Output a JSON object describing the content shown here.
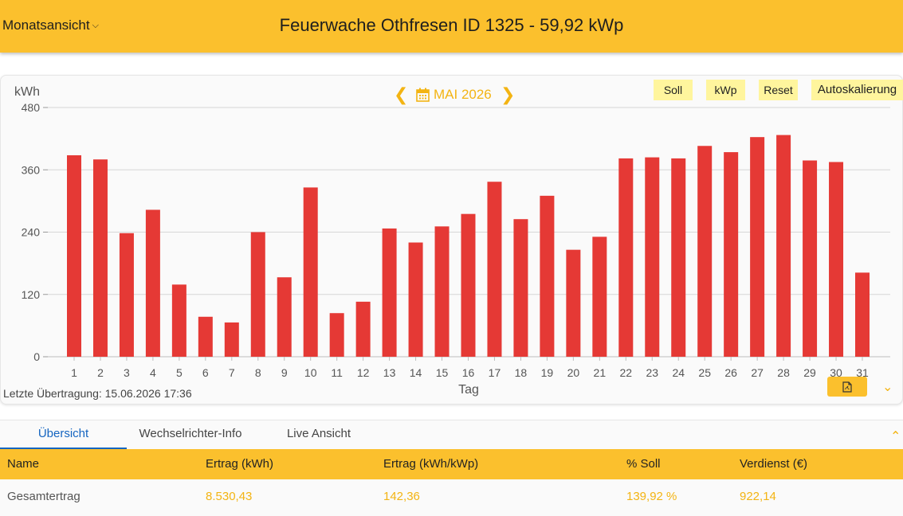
{
  "header": {
    "view_selector": "Monatsansicht",
    "title": "Feuerwache Othfresen ID 1325 - 59,92 kWp"
  },
  "toolbar": {
    "unit": "kWh",
    "month": "MAI 2026",
    "buttons": [
      "Soll",
      "kWp",
      "Reset",
      "Autoskalierung"
    ]
  },
  "colors": {
    "accent": "#fbc02d",
    "bar": "#e53935",
    "nav": "#f3b413",
    "tab_active": "#1565c0",
    "button_bg": "#fff59d"
  },
  "chart_data": {
    "type": "bar",
    "ylabel": "kWh",
    "xlabel": "Tag",
    "ylim": [
      0,
      480
    ],
    "yticks": [
      0,
      120,
      240,
      360,
      480
    ],
    "categories": [
      "1",
      "2",
      "3",
      "4",
      "5",
      "6",
      "7",
      "8",
      "9",
      "10",
      "11",
      "12",
      "13",
      "14",
      "15",
      "16",
      "17",
      "18",
      "19",
      "20",
      "21",
      "22",
      "23",
      "24",
      "25",
      "26",
      "27",
      "28",
      "29",
      "30",
      "31"
    ],
    "values": [
      388,
      380,
      238,
      283,
      139,
      77,
      66,
      240,
      153,
      326,
      84,
      106,
      247,
      220,
      251,
      275,
      337,
      265,
      310,
      206,
      231,
      382,
      384,
      382,
      406,
      394,
      423,
      427,
      378,
      375,
      162
    ],
    "grid": true,
    "legend": "none"
  },
  "footer": {
    "last_transfer": "Letzte Übertragung: 15.06.2026 17:36",
    "pdf_icon": "pdf-file-icon",
    "expand_icon": "chevron-down-icon"
  },
  "tabs": {
    "items": [
      "Übersicht",
      "Wechselrichter-Info",
      "Live Ansicht"
    ],
    "active": "Übersicht",
    "collapse_icon": "chevron-up-icon"
  },
  "table": {
    "headers": [
      "Name",
      "Ertrag (kWh)",
      "Ertrag (kWh/kWp)",
      "% Soll",
      "Verdienst (€)"
    ],
    "rows": [
      [
        "Gesamtertrag",
        "8.530,43",
        "142,36",
        "139,92 %",
        "922,14"
      ]
    ]
  }
}
